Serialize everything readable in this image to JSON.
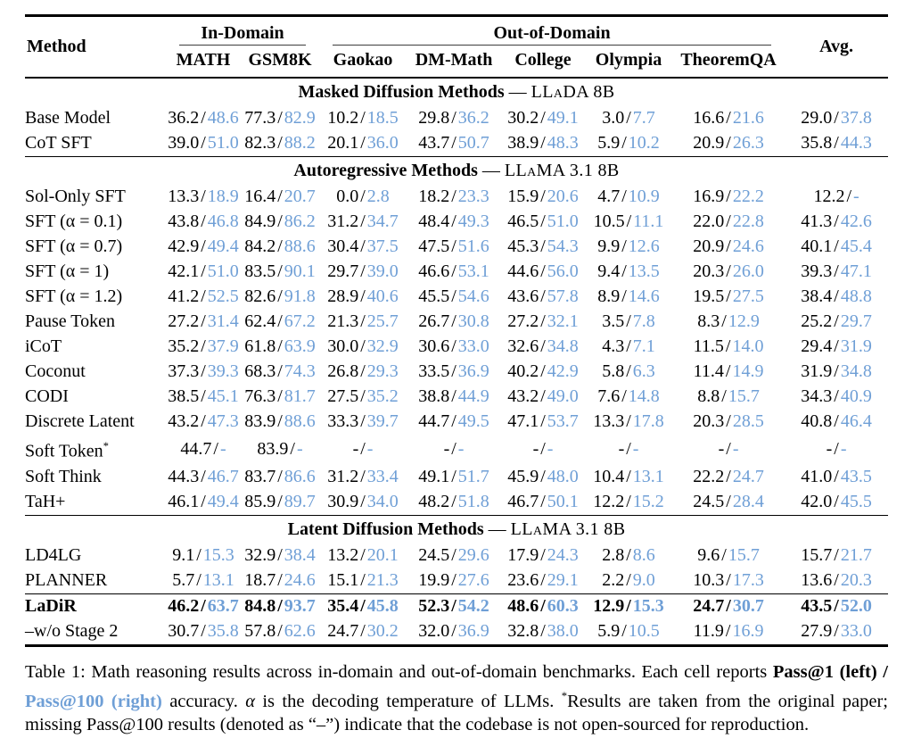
{
  "colors": {
    "pass100_blue": "#6f9fd6",
    "rule_black": "#000000"
  },
  "slash": "/",
  "dash": "—",
  "header": {
    "method": "Method",
    "avg": "Avg.",
    "groups": [
      {
        "label": "In-Domain",
        "cols": [
          "MATH",
          "GSM8K"
        ]
      },
      {
        "label": "Out-of-Domain",
        "cols": [
          "Gaokao",
          "DM-Math",
          "College",
          "Olympia",
          "TheoremQA"
        ]
      }
    ]
  },
  "sections": [
    {
      "title": "Masked Diffusion Methods",
      "model": "LLaDA 8B",
      "rows": [
        {
          "method": "Base Model",
          "cells": [
            [
              "36.2",
              "48.6"
            ],
            [
              "77.3",
              "82.9"
            ],
            [
              "10.2",
              "18.5"
            ],
            [
              "29.8",
              "36.2"
            ],
            [
              "30.2",
              "49.1"
            ],
            [
              "3.0",
              "7.7"
            ],
            [
              "16.6",
              "21.6"
            ],
            [
              "29.0",
              "37.8"
            ]
          ]
        },
        {
          "method": "CoT SFT",
          "cells": [
            [
              "39.0",
              "51.0"
            ],
            [
              "82.3",
              "88.2"
            ],
            [
              "20.1",
              "36.0"
            ],
            [
              "43.7",
              "50.7"
            ],
            [
              "38.9",
              "48.3"
            ],
            [
              "5.9",
              "10.2"
            ],
            [
              "20.9",
              "26.3"
            ],
            [
              "35.8",
              "44.3"
            ]
          ]
        }
      ]
    },
    {
      "title": "Autoregressive Methods",
      "model": "LLaMA 3.1 8B",
      "rows": [
        {
          "method": "Sol-Only SFT",
          "cells": [
            [
              "13.3",
              "18.9"
            ],
            [
              "16.4",
              "20.7"
            ],
            [
              "0.0",
              "2.8"
            ],
            [
              "18.2",
              "23.3"
            ],
            [
              "15.9",
              "20.6"
            ],
            [
              "4.7",
              "10.9"
            ],
            [
              "16.9",
              "22.2"
            ],
            [
              "12.2",
              "-"
            ]
          ]
        },
        {
          "method": "SFT (α = 0.1)",
          "cells": [
            [
              "43.8",
              "46.8"
            ],
            [
              "84.9",
              "86.2"
            ],
            [
              "31.2",
              "34.7"
            ],
            [
              "48.4",
              "49.3"
            ],
            [
              "46.5",
              "51.0"
            ],
            [
              "10.5",
              "11.1"
            ],
            [
              "22.0",
              "22.8"
            ],
            [
              "41.3",
              "42.6"
            ]
          ]
        },
        {
          "method": "SFT (α = 0.7)",
          "cells": [
            [
              "42.9",
              "49.4"
            ],
            [
              "84.2",
              "88.6"
            ],
            [
              "30.4",
              "37.5"
            ],
            [
              "47.5",
              "51.6"
            ],
            [
              "45.3",
              "54.3"
            ],
            [
              "9.9",
              "12.6"
            ],
            [
              "20.9",
              "24.6"
            ],
            [
              "40.1",
              "45.4"
            ]
          ]
        },
        {
          "method": "SFT (α = 1)",
          "cells": [
            [
              "42.1",
              "51.0"
            ],
            [
              "83.5",
              "90.1"
            ],
            [
              "29.7",
              "39.0"
            ],
            [
              "46.6",
              "53.1"
            ],
            [
              "44.6",
              "56.0"
            ],
            [
              "9.4",
              "13.5"
            ],
            [
              "20.3",
              "26.0"
            ],
            [
              "39.3",
              "47.1"
            ]
          ]
        },
        {
          "method": "SFT (α = 1.2)",
          "cells": [
            [
              "41.2",
              "52.5"
            ],
            [
              "82.6",
              "91.8"
            ],
            [
              "28.9",
              "40.6"
            ],
            [
              "45.5",
              "54.6"
            ],
            [
              "43.6",
              "57.8"
            ],
            [
              "8.9",
              "14.6"
            ],
            [
              "19.5",
              "27.5"
            ],
            [
              "38.4",
              "48.8"
            ]
          ]
        },
        {
          "method": "Pause Token",
          "cells": [
            [
              "27.2",
              "31.4"
            ],
            [
              "62.4",
              "67.2"
            ],
            [
              "21.3",
              "25.7"
            ],
            [
              "26.7",
              "30.8"
            ],
            [
              "27.2",
              "32.1"
            ],
            [
              "3.5",
              "7.8"
            ],
            [
              "8.3",
              "12.9"
            ],
            [
              "25.2",
              "29.7"
            ]
          ]
        },
        {
          "method": "iCoT",
          "cells": [
            [
              "35.2",
              "37.9"
            ],
            [
              "61.8",
              "63.9"
            ],
            [
              "30.0",
              "32.9"
            ],
            [
              "30.6",
              "33.0"
            ],
            [
              "32.6",
              "34.8"
            ],
            [
              "4.3",
              "7.1"
            ],
            [
              "11.5",
              "14.0"
            ],
            [
              "29.4",
              "31.9"
            ]
          ]
        },
        {
          "method": "Coconut",
          "cells": [
            [
              "37.3",
              "39.3"
            ],
            [
              "68.3",
              "74.3"
            ],
            [
              "26.8",
              "29.3"
            ],
            [
              "33.5",
              "36.9"
            ],
            [
              "40.2",
              "42.9"
            ],
            [
              "5.8",
              "6.3"
            ],
            [
              "11.4",
              "14.9"
            ],
            [
              "31.9",
              "34.8"
            ]
          ]
        },
        {
          "method": "CODI",
          "cells": [
            [
              "38.5",
              "45.1"
            ],
            [
              "76.3",
              "81.7"
            ],
            [
              "27.5",
              "35.2"
            ],
            [
              "38.8",
              "44.9"
            ],
            [
              "43.2",
              "49.0"
            ],
            [
              "7.6",
              "14.8"
            ],
            [
              "8.8",
              "15.7"
            ],
            [
              "34.3",
              "40.9"
            ]
          ]
        },
        {
          "method": "Discrete Latent",
          "cells": [
            [
              "43.2",
              "47.3"
            ],
            [
              "83.9",
              "88.6"
            ],
            [
              "33.3",
              "39.7"
            ],
            [
              "44.7",
              "49.5"
            ],
            [
              "47.1",
              "53.7"
            ],
            [
              "13.3",
              "17.8"
            ],
            [
              "20.3",
              "28.5"
            ],
            [
              "40.8",
              "46.4"
            ]
          ]
        },
        {
          "method": "Soft Token",
          "sup": "*",
          "cells": [
            [
              "44.7",
              "-"
            ],
            [
              "83.9",
              "-"
            ],
            [
              "-",
              "-"
            ],
            [
              "-",
              "-"
            ],
            [
              "-",
              "-"
            ],
            [
              "-",
              "-"
            ],
            [
              "-",
              "-"
            ],
            [
              "-",
              "-"
            ]
          ]
        },
        {
          "method": "Soft Think",
          "cells": [
            [
              "44.3",
              "46.7"
            ],
            [
              "83.7",
              "86.6"
            ],
            [
              "31.2",
              "33.4"
            ],
            [
              "49.1",
              "51.7"
            ],
            [
              "45.9",
              "48.0"
            ],
            [
              "10.4",
              "13.1"
            ],
            [
              "22.2",
              "24.7"
            ],
            [
              "41.0",
              "43.5"
            ]
          ]
        },
        {
          "method": "TaH+",
          "cells": [
            [
              "46.1",
              "49.4"
            ],
            [
              "85.9",
              "89.7"
            ],
            [
              "30.9",
              "34.0"
            ],
            [
              "48.2",
              "51.8"
            ],
            [
              "46.7",
              "50.1"
            ],
            [
              "12.2",
              "15.2"
            ],
            [
              "24.5",
              "28.4"
            ],
            [
              "42.0",
              "45.5"
            ]
          ]
        }
      ]
    },
    {
      "title": "Latent Diffusion Methods",
      "model": "LLaMA 3.1 8B",
      "rows": [
        {
          "method": "LD4LG",
          "cells": [
            [
              "9.1",
              "15.3"
            ],
            [
              "32.9",
              "38.4"
            ],
            [
              "13.2",
              "20.1"
            ],
            [
              "24.5",
              "29.6"
            ],
            [
              "17.9",
              "24.3"
            ],
            [
              "2.8",
              "8.6"
            ],
            [
              "9.6",
              "15.7"
            ],
            [
              "15.7",
              "21.7"
            ]
          ]
        },
        {
          "method": "PLANNER",
          "cells": [
            [
              "5.7",
              "13.1"
            ],
            [
              "18.7",
              "24.6"
            ],
            [
              "15.1",
              "21.3"
            ],
            [
              "19.9",
              "27.6"
            ],
            [
              "23.6",
              "29.1"
            ],
            [
              "2.2",
              "9.0"
            ],
            [
              "10.3",
              "17.3"
            ],
            [
              "13.6",
              "20.3"
            ]
          ]
        },
        {
          "method": "LaDiR",
          "bold": true,
          "rule_before": true,
          "cells": [
            [
              "46.2",
              "63.7"
            ],
            [
              "84.8",
              "93.7"
            ],
            [
              "35.4",
              "45.8"
            ],
            [
              "52.3",
              "54.2"
            ],
            [
              "48.6",
              "60.3"
            ],
            [
              "12.9",
              "15.3"
            ],
            [
              "24.7",
              "30.7"
            ],
            [
              "43.5",
              "52.0"
            ]
          ]
        },
        {
          "method": "–w/o Stage 2",
          "cells": [
            [
              "30.7",
              "35.8"
            ],
            [
              "57.8",
              "62.6"
            ],
            [
              "24.7",
              "30.2"
            ],
            [
              "32.0",
              "36.9"
            ],
            [
              "32.8",
              "38.0"
            ],
            [
              "5.9",
              "10.5"
            ],
            [
              "11.9",
              "16.9"
            ],
            [
              "27.9",
              "33.0"
            ]
          ]
        }
      ]
    }
  ],
  "caption": {
    "intro": "Table 1: Math reasoning results across in-domain and out-of-domain benchmarks. Each cell reports ",
    "pass1": "Pass@1 (left) / ",
    "pass100": "Pass@100 (right)",
    "mid1": " accuracy. ",
    "alpha": "α",
    "mid2": " is the decoding temperature of LLMs. ",
    "star": "*",
    "rest": "Results are taken from the original paper; missing Pass@100 results (denoted as “–”) indicate that the codebase is not open-sourced for reproduction."
  }
}
